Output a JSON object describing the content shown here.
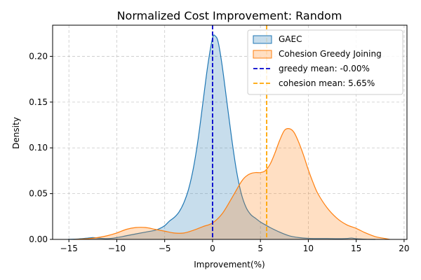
{
  "chart_data": {
    "type": "area",
    "title": "Normalized Cost Improvement: Random",
    "xlabel": "Improvement(%)",
    "ylabel": "Density",
    "xlim": [
      -16.7,
      20.3
    ],
    "ylim": [
      0,
      0.234
    ],
    "xticks": [
      -15,
      -10,
      -5,
      0,
      5,
      10,
      15,
      20
    ],
    "xtick_labels": [
      "−15",
      "−10",
      "−5",
      "0",
      "5",
      "10",
      "15",
      "20"
    ],
    "yticks": [
      0.0,
      0.05,
      0.1,
      0.15,
      0.2
    ],
    "ytick_labels": [
      "0.00",
      "0.05",
      "0.10",
      "0.15",
      "0.20"
    ],
    "grid": true,
    "legend_position": "top-right",
    "series": [
      {
        "name": "GAEC",
        "kind": "density",
        "color": "#1f77b4",
        "x": [
          -15.1,
          -14,
          -13,
          -12.5,
          -12,
          -11,
          -10,
          -9,
          -8,
          -7,
          -6,
          -5.5,
          -5,
          -4.5,
          -4,
          -3.5,
          -3,
          -2.5,
          -2,
          -1.5,
          -1,
          -0.5,
          0,
          0.3,
          0.6,
          1,
          1.5,
          2,
          2.5,
          3,
          3.5,
          4,
          4.5,
          5,
          5.5,
          6,
          7,
          8,
          9,
          10,
          11,
          12,
          13,
          14,
          14.5,
          15,
          16,
          17
        ],
        "y": [
          0.0,
          0.0005,
          0.0015,
          0.002,
          0.0015,
          0.0008,
          0.002,
          0.004,
          0.006,
          0.008,
          0.01,
          0.012,
          0.015,
          0.02,
          0.024,
          0.03,
          0.04,
          0.055,
          0.078,
          0.11,
          0.15,
          0.19,
          0.22,
          0.222,
          0.215,
          0.19,
          0.15,
          0.11,
          0.075,
          0.05,
          0.035,
          0.027,
          0.023,
          0.019,
          0.016,
          0.013,
          0.008,
          0.004,
          0.002,
          0.0012,
          0.001,
          0.001,
          0.0008,
          0.001,
          0.0015,
          0.0008,
          0.0002,
          0.0
        ]
      },
      {
        "name": "Cohesion Greedy Joining",
        "kind": "density",
        "color": "#ff7f0e",
        "x": [
          -14.5,
          -13,
          -12,
          -11,
          -10,
          -9,
          -8,
          -7,
          -6,
          -5,
          -4,
          -3,
          -2,
          -1,
          0,
          1,
          2,
          3,
          3.5,
          4,
          4.5,
          5,
          5.5,
          6,
          6.5,
          7,
          7.5,
          8,
          8.5,
          9,
          9.5,
          10,
          10.5,
          11,
          12,
          13,
          14,
          15,
          16,
          17,
          18,
          18.5
        ],
        "y": [
          0.0,
          0.0008,
          0.002,
          0.004,
          0.007,
          0.011,
          0.013,
          0.013,
          0.011,
          0.009,
          0.007,
          0.007,
          0.01,
          0.014,
          0.018,
          0.028,
          0.045,
          0.063,
          0.069,
          0.072,
          0.073,
          0.073,
          0.075,
          0.082,
          0.094,
          0.108,
          0.119,
          0.121,
          0.117,
          0.106,
          0.092,
          0.076,
          0.062,
          0.05,
          0.034,
          0.023,
          0.016,
          0.012,
          0.007,
          0.003,
          0.001,
          0.0
        ]
      }
    ],
    "reference_lines": [
      {
        "name": "greedy mean: -0.00%",
        "x": -0.0,
        "color": "#0000cc",
        "style": "dashed"
      },
      {
        "name": "cohesion mean: 5.65%",
        "x": 5.65,
        "color": "#ffa500",
        "style": "dashed"
      }
    ]
  }
}
